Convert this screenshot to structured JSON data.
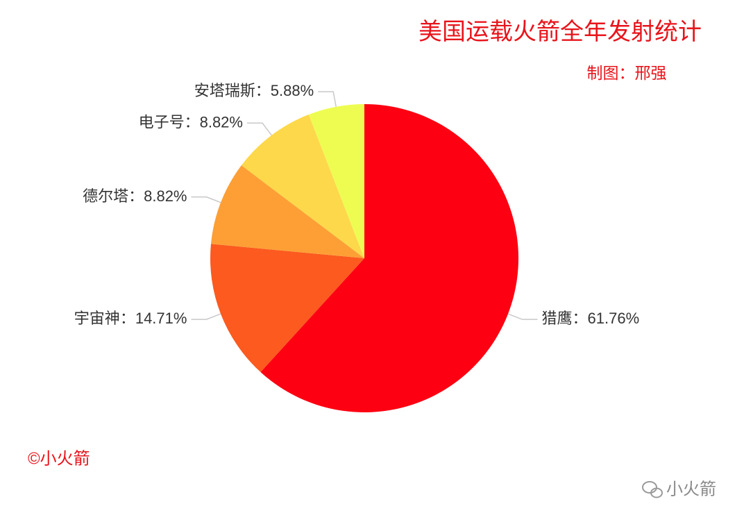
{
  "chart_data": {
    "type": "pie",
    "title": "美国运载火箭全年发射统计",
    "subtitle": "制图：邢强",
    "credit": "©小火箭",
    "watermark": "小火箭",
    "label_separator": "：",
    "categories": [
      "猎鹰",
      "宇宙神",
      "德尔塔",
      "电子号",
      "安塔瑞斯"
    ],
    "values": [
      61.76,
      14.71,
      8.82,
      8.82,
      5.88
    ],
    "value_labels": [
      "61.76%",
      "14.71%",
      "8.82%",
      "8.82%",
      "5.88%"
    ],
    "colors": [
      "#fd0012",
      "#fc5a1f",
      "#fd9f35",
      "#fdd84b",
      "#eefc52"
    ]
  }
}
